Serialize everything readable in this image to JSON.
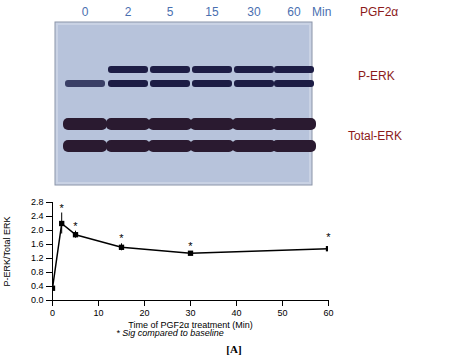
{
  "blot": {
    "lanes": [
      "0",
      "2",
      "5",
      "15",
      "30",
      "60"
    ],
    "unit": "Min",
    "treatment": "PGF2α",
    "rows": [
      "P-ERK",
      "Total-ERK"
    ]
  },
  "chart_data": {
    "type": "line",
    "x": [
      0,
      2,
      5,
      15,
      30,
      60
    ],
    "values": [
      0.35,
      2.2,
      1.88,
      1.52,
      1.35,
      1.48
    ],
    "errors": [
      0.05,
      0.3,
      0.1,
      0.1,
      0.05,
      0.18
    ],
    "color": "#000000",
    "marker": "square",
    "xlabel": "Time of PGF2α treatment (Min)",
    "ylabel": "P-ERK/Total ERK",
    "xlim": [
      0,
      60
    ],
    "xticks": [
      0,
      10,
      20,
      30,
      40,
      50,
      60
    ],
    "ylim": [
      0,
      2.8
    ],
    "yticks": [
      {
        "value": 0,
        "label": "0.0"
      },
      0.4,
      0.8,
      1.2,
      1.6,
      {
        "value": 2,
        "label": "2.0"
      },
      2.4,
      2.8
    ],
    "annotations": [
      {
        "x": 2,
        "text": "*"
      },
      {
        "x": 5,
        "text": "*"
      },
      {
        "x": 15,
        "text": "*"
      },
      {
        "x": 30,
        "text": "*"
      },
      {
        "x": 60,
        "text": "*"
      }
    ],
    "note": "* Sig compared to baseline",
    "caption": "[A]",
    "grid": false
  }
}
